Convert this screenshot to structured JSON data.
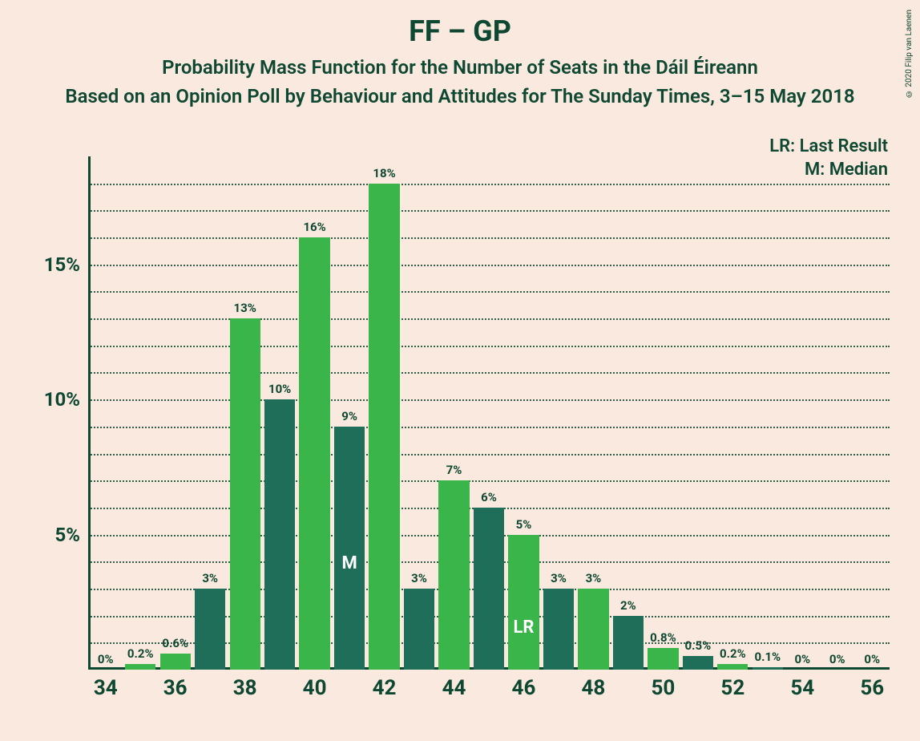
{
  "title": "FF – GP",
  "subtitle1": "Probability Mass Function for the Number of Seats in the Dáil Éireann",
  "subtitle2": "Based on an Opinion Poll by Behaviour and Attitudes for The Sunday Times, 3–15 May 2018",
  "legend": {
    "lr": "LR: Last Result",
    "m": "M: Median"
  },
  "copyright": "© 2020 Filip van Laenen",
  "chart": {
    "type": "bar",
    "background_color": "#fae9de",
    "text_color": "#0e4732",
    "colors": {
      "bright": "#39b54a",
      "dark": "#1e6e5a"
    },
    "ylim": [
      0,
      19
    ],
    "ytick_major": [
      5,
      10,
      15
    ],
    "ytick_minor_step": 1,
    "ytick_labels": [
      "5%",
      "10%",
      "15%"
    ],
    "xlim": [
      33.5,
      56.5
    ],
    "xtick_labels": [
      34,
      36,
      38,
      40,
      42,
      44,
      46,
      48,
      50,
      52,
      54,
      56
    ],
    "median_x": 41,
    "median_label": "M",
    "last_result_x": 46,
    "last_result_label": "LR",
    "bar_width": 0.88,
    "bars": [
      {
        "x": 34,
        "value": 0,
        "label": "0%",
        "color": "dark"
      },
      {
        "x": 35,
        "value": 0.2,
        "label": "0.2%",
        "color": "bright"
      },
      {
        "x": 36,
        "value": 0.6,
        "label": "0.6%",
        "color": "bright"
      },
      {
        "x": 37,
        "value": 3,
        "label": "3%",
        "color": "dark"
      },
      {
        "x": 38,
        "value": 13,
        "label": "13%",
        "color": "bright"
      },
      {
        "x": 39,
        "value": 10,
        "label": "10%",
        "color": "dark"
      },
      {
        "x": 40,
        "value": 16,
        "label": "16%",
        "color": "bright"
      },
      {
        "x": 41,
        "value": 9,
        "label": "9%",
        "color": "dark"
      },
      {
        "x": 42,
        "value": 18,
        "label": "18%",
        "color": "bright"
      },
      {
        "x": 43,
        "value": 3,
        "label": "3%",
        "color": "dark"
      },
      {
        "x": 44,
        "value": 7,
        "label": "7%",
        "color": "bright"
      },
      {
        "x": 45,
        "value": 6,
        "label": "6%",
        "color": "dark"
      },
      {
        "x": 46,
        "value": 5,
        "label": "5%",
        "color": "bright"
      },
      {
        "x": 47,
        "value": 3,
        "label": "3%",
        "color": "dark"
      },
      {
        "x": 48,
        "value": 3,
        "label": "3%",
        "color": "bright"
      },
      {
        "x": 49,
        "value": 2,
        "label": "2%",
        "color": "dark"
      },
      {
        "x": 50,
        "value": 0.8,
        "label": "0.8%",
        "color": "bright"
      },
      {
        "x": 51,
        "value": 0.5,
        "label": "0.5%",
        "color": "dark"
      },
      {
        "x": 52,
        "value": 0.2,
        "label": "0.2%",
        "color": "bright"
      },
      {
        "x": 53,
        "value": 0.1,
        "label": "0.1%",
        "color": "dark"
      },
      {
        "x": 54,
        "value": 0,
        "label": "0%",
        "color": "bright"
      },
      {
        "x": 55,
        "value": 0,
        "label": "0%",
        "color": "dark"
      },
      {
        "x": 56,
        "value": 0,
        "label": "0%",
        "color": "bright"
      }
    ]
  }
}
